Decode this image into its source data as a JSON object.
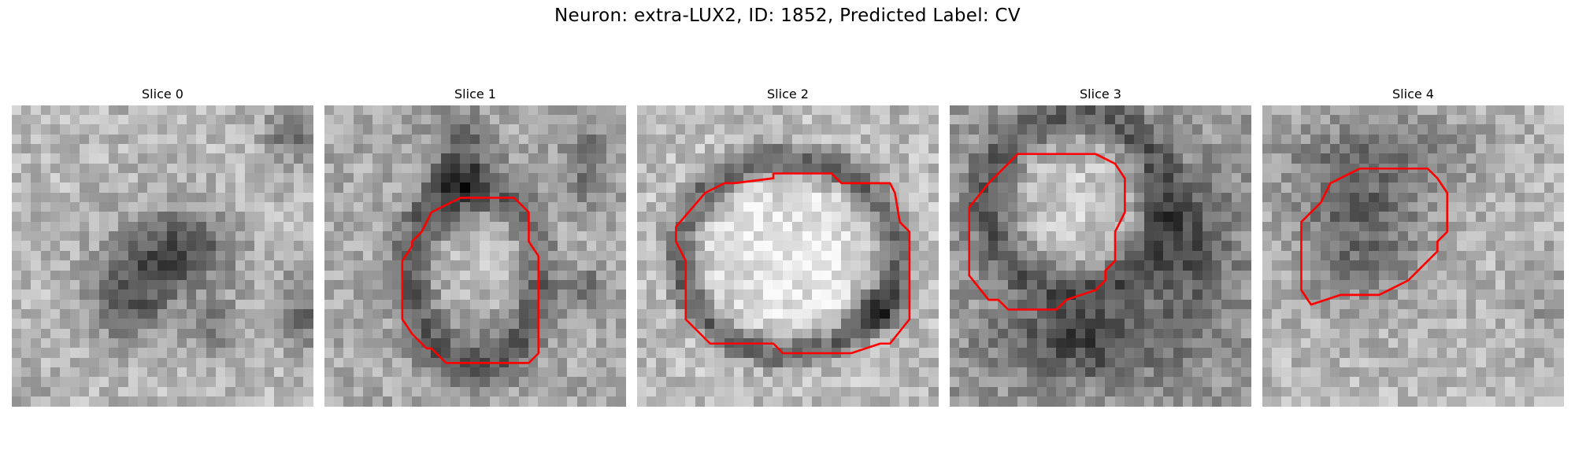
{
  "figure": {
    "title": "Neuron: extra-LUX2, ID: 1852, Predicted Label: CV"
  },
  "panels": [
    {
      "title": "Slice 0",
      "image": "grayscale-intensity-patch",
      "has_contour": false,
      "contour_color": "#ff0000"
    },
    {
      "title": "Slice 1",
      "image": "grayscale-intensity-patch",
      "has_contour": true,
      "contour_color": "#ff0000"
    },
    {
      "title": "Slice 2",
      "image": "grayscale-intensity-patch",
      "has_contour": true,
      "contour_color": "#ff0000"
    },
    {
      "title": "Slice 3",
      "image": "grayscale-intensity-patch",
      "has_contour": true,
      "contour_color": "#ff0000"
    },
    {
      "title": "Slice 4",
      "image": "grayscale-intensity-patch",
      "has_contour": true,
      "contour_color": "#ff0000"
    }
  ]
}
